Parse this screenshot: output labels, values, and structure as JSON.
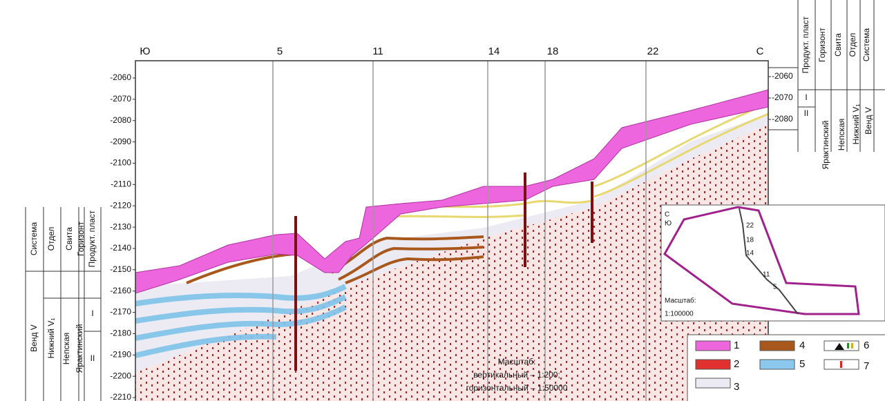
{
  "top_labels": [
    "Ю",
    "5",
    "11",
    "14",
    "18",
    "22",
    "С"
  ],
  "depth_axis_left": {
    "ticks": [
      -2060,
      -2070,
      -2080,
      -2090,
      -2100,
      -2110,
      -2120,
      -2130,
      -2140,
      -2150,
      -2160,
      -2170,
      -2180,
      -2190,
      -2200,
      -2210
    ]
  },
  "depth_axis_right": {
    "ticks": [
      -2060,
      -2070,
      -2080
    ]
  },
  "strat_left": {
    "headers": [
      "Система",
      "Отдел",
      "Свита",
      "Горизонт",
      "Продукт. пласт"
    ],
    "system": "Венд V",
    "department": "Нижний V₁",
    "suite": "Непская",
    "horizon": "Ярактинский",
    "layers": [
      "I",
      "II"
    ]
  },
  "strat_right": {
    "headers": [
      "Продукт. пласт",
      "Горизонт",
      "Свита",
      "Отдел",
      "Система"
    ],
    "layers": [
      "I",
      "II"
    ],
    "horizon": "Ярактинский",
    "suite": "Непская",
    "department": "Нижний V₁",
    "system": "Венд V"
  },
  "inset": {
    "north": "С",
    "south": "Ю",
    "wells": [
      "22",
      "18",
      "14",
      "11",
      "5"
    ],
    "scale_title": "Масштаб:",
    "scale": "1:100000"
  },
  "legend": [
    "1",
    "2",
    "3",
    "4",
    "5",
    "6",
    "7"
  ],
  "scale_note": [
    "Масштаб:",
    "вертикальный – 1:200;",
    "горизонтальный – 1:50000"
  ]
}
